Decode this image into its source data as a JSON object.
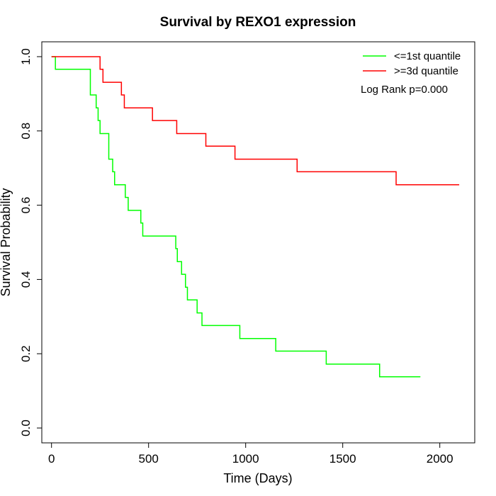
{
  "chart_data": {
    "type": "line",
    "step": true,
    "title": "Survival by REXO1 expression",
    "xlabel": "Time (Days)",
    "ylabel": "Survival Probability",
    "xlim": [
      -50,
      2180
    ],
    "ylim": [
      -0.04,
      1.04
    ],
    "xticks": [
      0,
      500,
      1000,
      1500,
      2000
    ],
    "yticks": [
      0.0,
      0.2,
      0.4,
      0.6,
      0.8,
      1.0
    ],
    "xtick_labels": [
      "0",
      "500",
      "1000",
      "1500",
      "2000"
    ],
    "ytick_labels": [
      "0.0",
      "0.2",
      "0.4",
      "0.6",
      "0.8",
      "1.0"
    ],
    "grid": false,
    "legend_position": "top-right",
    "annotation": "Log Rank p=0.000",
    "series": [
      {
        "name": "<=1st quantile",
        "color": "#00ff00",
        "x": [
          0,
          20,
          200,
          230,
          240,
          250,
          295,
          315,
          325,
          380,
          395,
          405,
          460,
          465,
          470,
          640,
          648,
          655,
          670,
          690,
          698,
          700,
          750,
          760,
          775,
          970,
          1155,
          1415,
          1690,
          1900
        ],
        "y": [
          1.0,
          0.966,
          0.897,
          0.862,
          0.828,
          0.793,
          0.724,
          0.69,
          0.655,
          0.621,
          0.586,
          0.586,
          0.552,
          0.552,
          0.517,
          0.483,
          0.448,
          0.448,
          0.414,
          0.379,
          0.379,
          0.345,
          0.31,
          0.31,
          0.276,
          0.241,
          0.207,
          0.172,
          0.138,
          0.138
        ]
      },
      {
        "name": ">=3d quantile",
        "color": "#ff0000",
        "x": [
          0,
          250,
          265,
          285,
          360,
          375,
          520,
          645,
          795,
          945,
          1265,
          1775,
          2100
        ],
        "y": [
          1.0,
          0.966,
          0.931,
          0.931,
          0.897,
          0.862,
          0.828,
          0.793,
          0.759,
          0.724,
          0.69,
          0.655,
          0.655
        ]
      }
    ]
  }
}
